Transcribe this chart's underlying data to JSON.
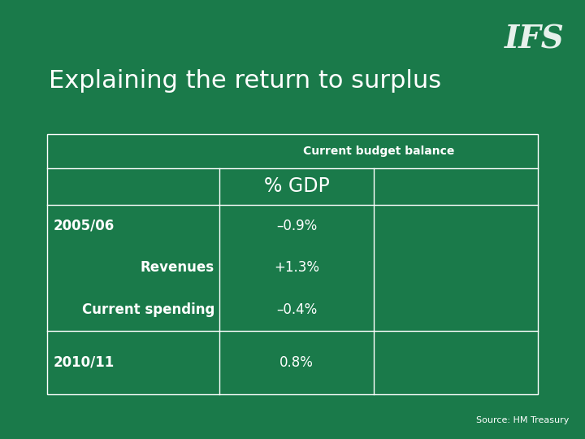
{
  "title": "Explaining the return to surplus",
  "background_color": "#1a7a4a",
  "table_border_color": "#ffffff",
  "text_color": "#ffffff",
  "source_text": "Source: HM Treasury",
  "ifs_logo_text": "IFS",
  "col_header": "Current budget balance",
  "sub_header": "% GDP",
  "rows": [
    {
      "label": "2005/06",
      "label_align": "left",
      "value": "–0.9%"
    },
    {
      "label": "Revenues",
      "label_align": "right",
      "value": "+1.3%"
    },
    {
      "label": "Current spending",
      "label_align": "right",
      "value": "–0.4%"
    },
    {
      "label": "2010/11",
      "label_align": "left",
      "value": "0.8%"
    }
  ],
  "title_fontsize": 22,
  "header_fontsize": 10,
  "subheader_fontsize": 17,
  "row_fontsize": 12,
  "source_fontsize": 8,
  "logo_fontsize": 28
}
